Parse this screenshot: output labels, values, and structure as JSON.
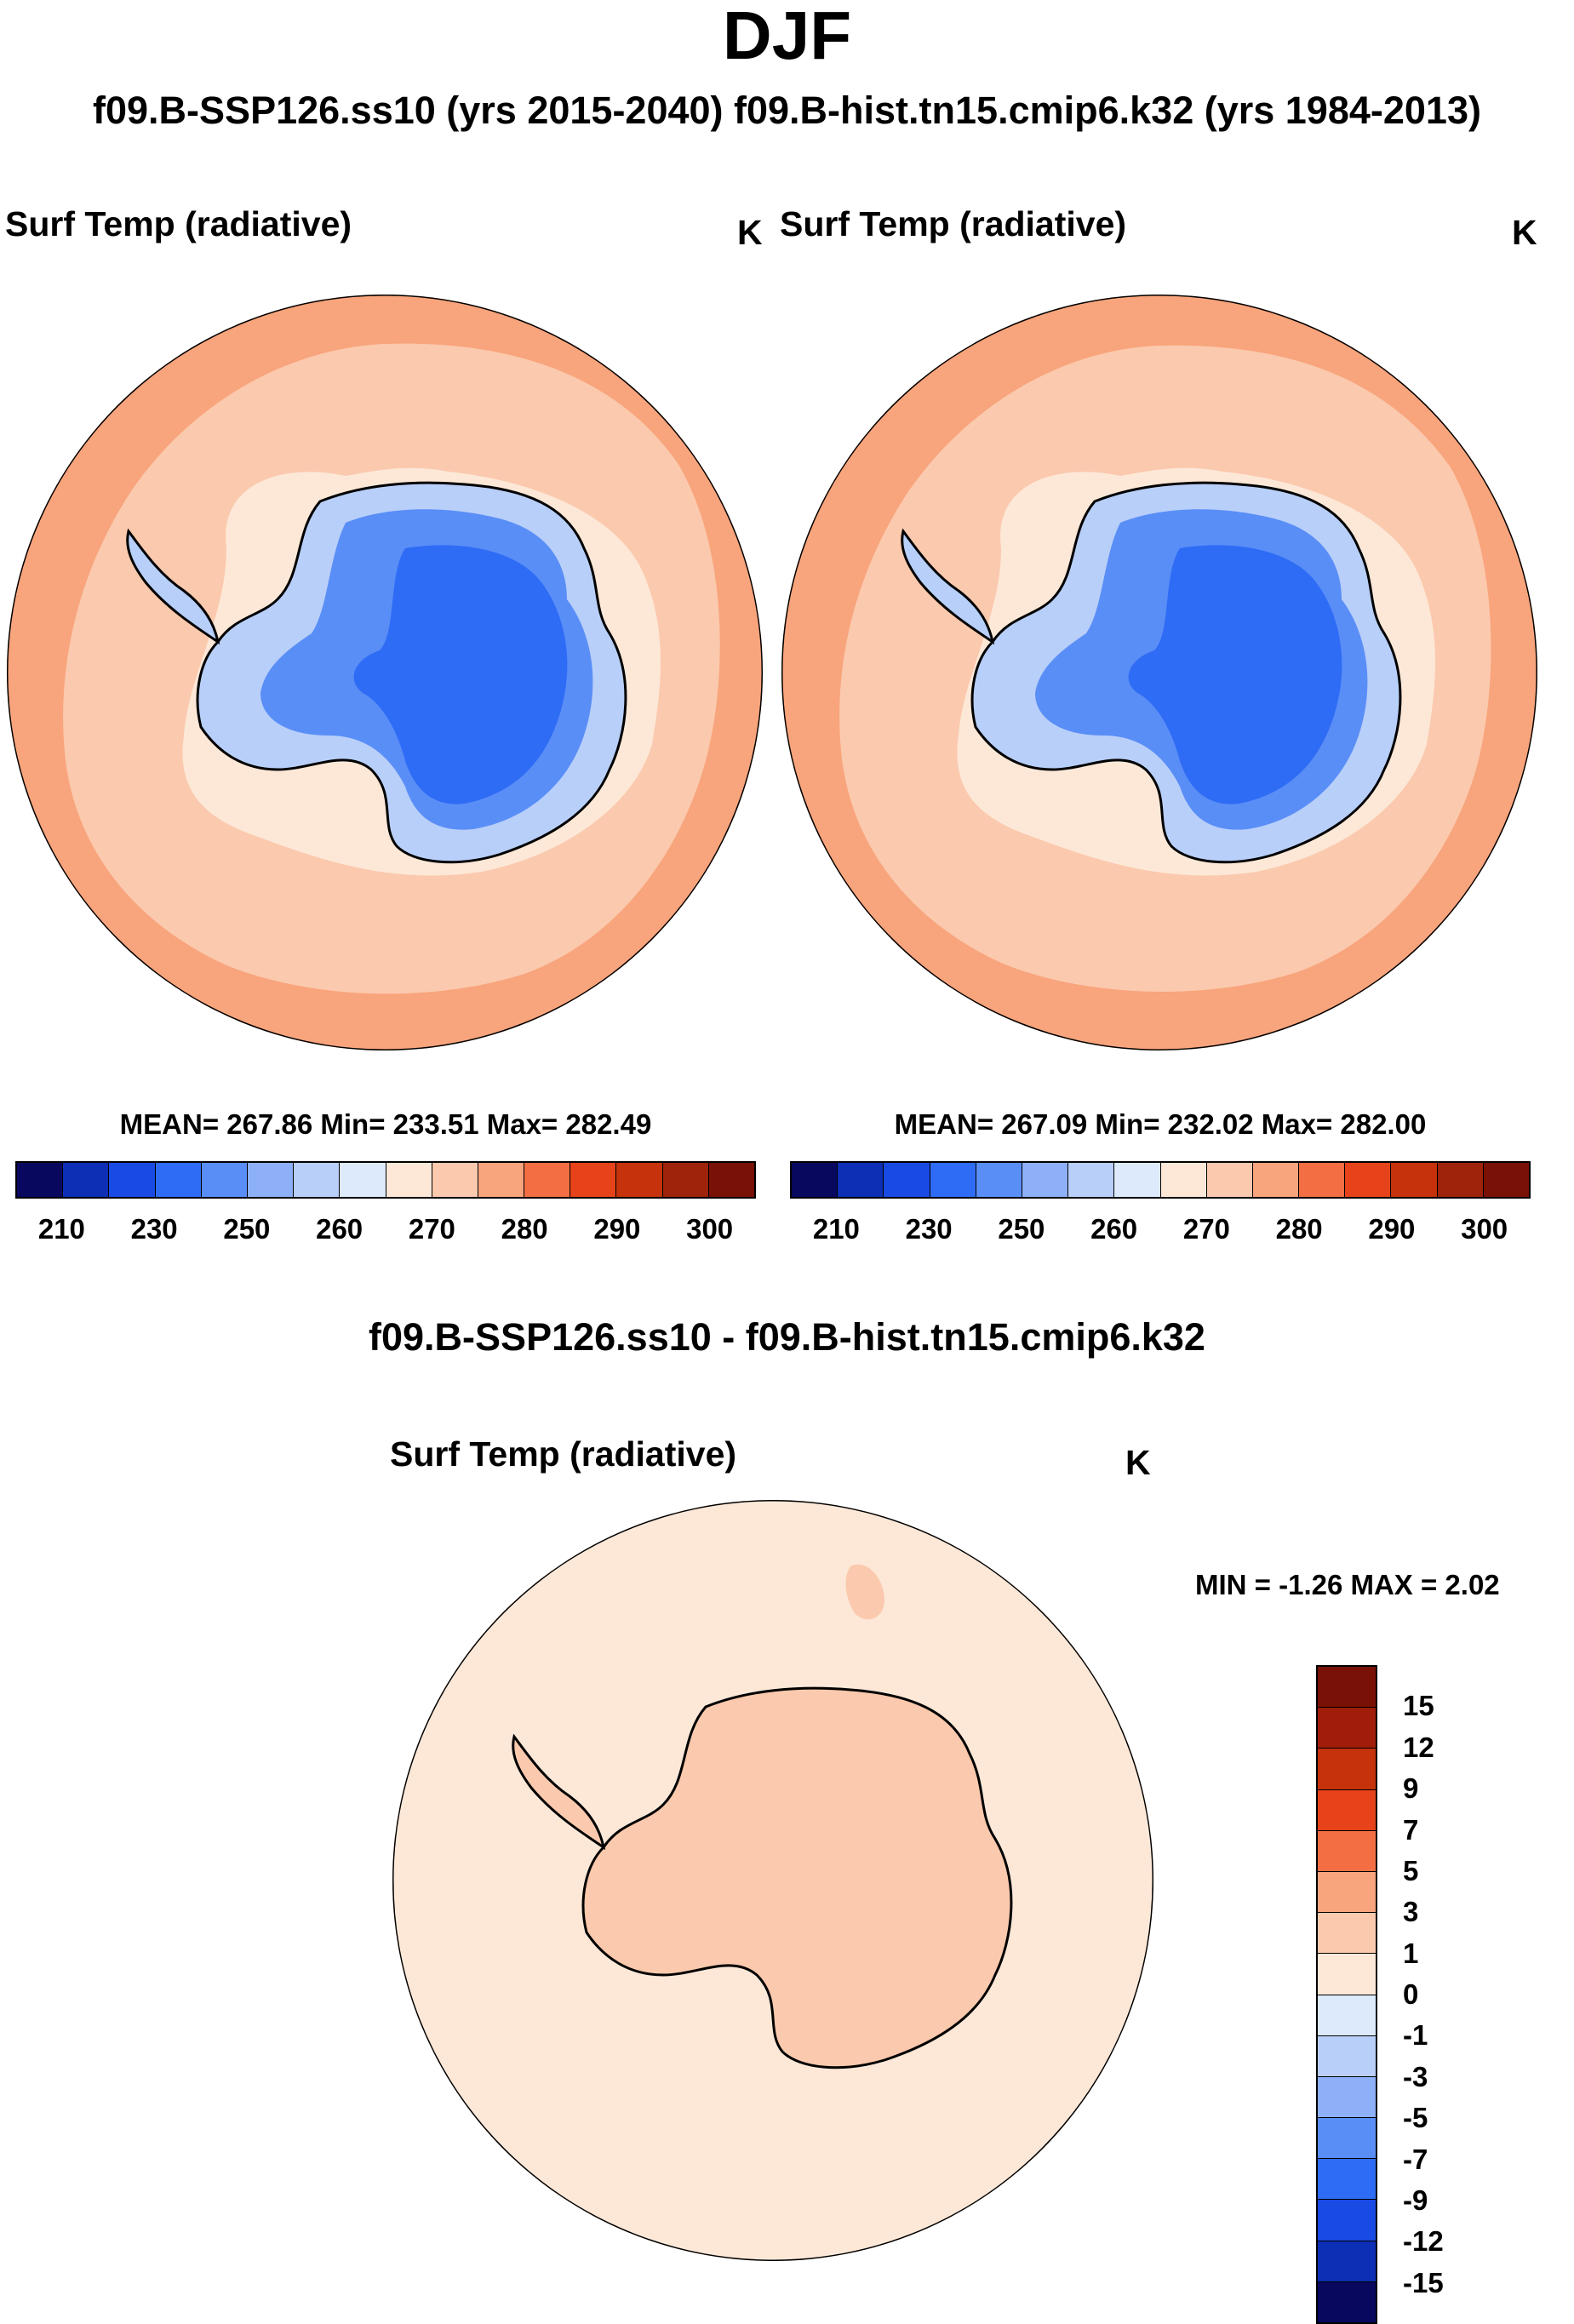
{
  "figure": {
    "title": "DJF",
    "subtitle": "f09.B-SSP126.ss10 (yrs 2015-2040)  f09.B-hist.tn15.cmip6.k32 (yrs 1984-2013)"
  },
  "colors": {
    "abs_scale": [
      "#08085e",
      "#0c2fb5",
      "#1a4ae4",
      "#2f6cf5",
      "#5a8ef7",
      "#8db0f8",
      "#b8cff9",
      "#ddeafb",
      "#fde8d8",
      "#fbc9ad",
      "#f8a47c",
      "#f36f43",
      "#e6431a",
      "#c5320c",
      "#9e230a",
      "#7a1106"
    ],
    "diff_scale": [
      "#7a1106",
      "#a01d0a",
      "#c5320c",
      "#e6431a",
      "#f36f43",
      "#f8a47c",
      "#fbc9ad",
      "#fde8d8",
      "#ddeafb",
      "#b8cff9",
      "#8db0f8",
      "#5a8ef7",
      "#2f6cf5",
      "#1a4ae4",
      "#0c2fb5",
      "#08085e"
    ]
  },
  "panels": {
    "left": {
      "variable": "Surf Temp (radiative)",
      "units": "K",
      "stats": "MEAN= 267.86  Min= 233.51  Max= 282.49"
    },
    "right": {
      "variable": "Surf Temp (radiative)",
      "units": "K",
      "stats": "MEAN= 267.09  Min= 232.02  Max= 282.00"
    },
    "diff": {
      "title": "f09.B-SSP126.ss10 - f09.B-hist.tn15.cmip6.k32",
      "variable": "Surf Temp (radiative)",
      "units": "K",
      "stats": "MIN =  -1.26 MAX =   2.02"
    }
  },
  "colorbar_abs": {
    "ticks": [
      "210",
      "230",
      "250",
      "260",
      "270",
      "280",
      "290",
      "300"
    ]
  },
  "colorbar_diff": {
    "ticks": [
      "15",
      "12",
      "9",
      "7",
      "5",
      "3",
      "1",
      "0",
      "-1",
      "-3",
      "-5",
      "-7",
      "-9",
      "-12",
      "-15"
    ]
  }
}
